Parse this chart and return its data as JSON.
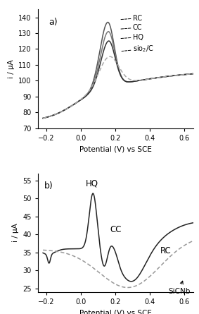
{
  "panel_a": {
    "title": "a)",
    "xlim": [
      -0.25,
      0.65
    ],
    "ylim": [
      70,
      145
    ],
    "yticks": [
      70,
      80,
      90,
      100,
      110,
      120,
      130,
      140
    ],
    "xticks": [
      -0.2,
      0.0,
      0.2,
      0.4,
      0.6
    ],
    "xlabel": "Potential (V) vs SCE",
    "ylabel": "i / μA"
  },
  "panel_b": {
    "title": "b)",
    "xlim": [
      -0.25,
      0.65
    ],
    "ylim": [
      24,
      57
    ],
    "yticks": [
      25,
      30,
      35,
      40,
      45,
      50,
      55
    ],
    "xticks": [
      -0.2,
      0.0,
      0.2,
      0.4,
      0.6
    ],
    "xlabel": "Potential (V) vs SCE",
    "ylabel": "i / μA"
  }
}
